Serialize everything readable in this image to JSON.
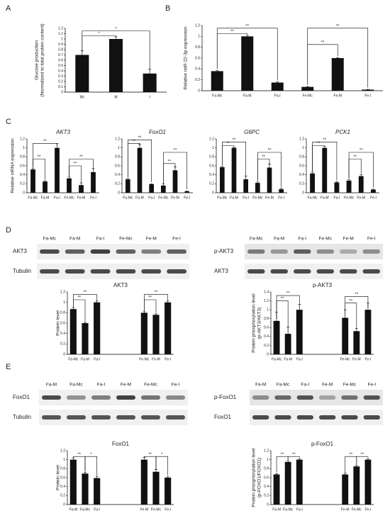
{
  "panels": [
    "A",
    "B",
    "C",
    "D",
    "E"
  ],
  "chart_data": [
    {
      "type": "bar",
      "ylabel": [
        "Glucose production",
        "(Normalized to total protein content)"
      ],
      "categories": [
        "Mc",
        "M",
        "I"
      ],
      "values": [
        0.7,
        1.0,
        0.35
      ],
      "errors": [
        0.08,
        0.04,
        0.08
      ],
      "ylim": [
        0,
        1.2
      ],
      "yticks": [
        0,
        0.1,
        0.2,
        0.3,
        0.4,
        0.5,
        0.6,
        0.7,
        0.8,
        0.9,
        1,
        1.1,
        1.2
      ],
      "color": "#111111",
      "annotations": [
        "*",
        "*"
      ]
    },
    {
      "type": "bar",
      "ylabel": [
        "Relative miR-22-3p expression"
      ],
      "categories": [
        "Fa-Mc",
        "Fa-M",
        "Fa-I",
        "Fe-Mc",
        "Fe-M",
        "Fe-I"
      ],
      "values": [
        0.36,
        1.0,
        0.15,
        0.07,
        0.6,
        0.02
      ],
      "errors": [
        0.01,
        0.02,
        0.01,
        0.005,
        0.01,
        0.005
      ],
      "ylim": [
        0,
        1.2
      ],
      "yticks": [
        0,
        0.2,
        0.4,
        0.6,
        0.8,
        1,
        1.2
      ],
      "color": "#111111",
      "annotations": [
        "**",
        "**",
        "**",
        "**"
      ]
    },
    {
      "type": "bar",
      "title": "AKT3",
      "ylabel": [
        "Relative mRNA expression"
      ],
      "categories": [
        "Fa-Mc",
        "Fa-M",
        "Fa-I",
        "Fe-Mc",
        "Fe-M",
        "Fe-I"
      ],
      "values": [
        0.52,
        0.25,
        1.0,
        0.32,
        0.17,
        0.46
      ],
      "errors": [
        0.03,
        0.02,
        0.1,
        0.03,
        0.05,
        0.08
      ],
      "ylim": [
        0,
        1.2
      ],
      "yticks": [
        0,
        0.2,
        0.4,
        0.6,
        0.8,
        1,
        1.2
      ],
      "color": "#111111",
      "annotations": [
        "**",
        "**",
        "**",
        "**"
      ]
    },
    {
      "type": "bar",
      "title": "FoxO1",
      "categories": [
        "Fa-Mc",
        "Fa-M",
        "Fa-I",
        "Fe-Mc",
        "Fe-M",
        "Fe-I"
      ],
      "values": [
        0.3,
        1.0,
        0.19,
        0.16,
        0.5,
        0.03
      ],
      "errors": [
        0.02,
        0.08,
        0.01,
        0.04,
        0.08,
        0.01
      ],
      "ylim": [
        0,
        1.2
      ],
      "yticks": [
        0,
        0.2,
        0.4,
        0.6,
        0.8,
        1,
        1.2
      ],
      "color": "#111111",
      "annotations": [
        "**",
        "**",
        "**",
        "**"
      ]
    },
    {
      "type": "bar",
      "title": "G6PC",
      "categories": [
        "Fa-Mc",
        "Fa-M",
        "Fa-I",
        "Fe-Mc",
        "Fe-M",
        "Fe-I"
      ],
      "values": [
        0.57,
        1.0,
        0.3,
        0.22,
        0.56,
        0.08
      ],
      "errors": [
        0.02,
        0.02,
        0.07,
        0.02,
        0.08,
        0.02
      ],
      "ylim": [
        0,
        1.2
      ],
      "yticks": [
        0,
        0.2,
        0.4,
        0.6,
        0.8,
        1,
        1.2
      ],
      "color": "#111111",
      "annotations": [
        "**",
        "**",
        "**",
        "**"
      ]
    },
    {
      "type": "bar",
      "title": "PCK1",
      "categories": [
        "Fa-Mc",
        "Fa-M",
        "Fa-I",
        "Fe-Mc",
        "Fe-M",
        "Fe-I"
      ],
      "values": [
        0.43,
        1.0,
        0.23,
        0.27,
        0.37,
        0.07
      ],
      "errors": [
        0.03,
        0.03,
        0.02,
        0.02,
        0.03,
        0.01
      ],
      "ylim": [
        0,
        1.2
      ],
      "yticks": [
        0,
        0.2,
        0.4,
        0.6,
        0.8,
        1,
        1.2
      ],
      "color": "#111111",
      "annotations": [
        "**",
        "**",
        "**",
        "**"
      ]
    },
    {
      "type": "bar",
      "title": "AKT3",
      "ylabel": [
        "Protein level"
      ],
      "categories": [
        "Fa-Mc",
        "Fa-M",
        "Fa-I",
        "Fe-Mc",
        "Fe-M",
        "Fe-I"
      ],
      "values": [
        0.87,
        0.6,
        1.0,
        0.8,
        0.76,
        1.0
      ],
      "errors": [
        0.03,
        0.02,
        0.03,
        0.03,
        0.02,
        0.03
      ],
      "ylim": [
        0,
        1.2
      ],
      "yticks": [
        0,
        0.2,
        0.4,
        0.6,
        0.8,
        1,
        1.2
      ],
      "color": "#111111",
      "annotations": [
        "**",
        "**",
        "**",
        "**"
      ]
    },
    {
      "type": "bar",
      "title": "p-AKT3",
      "ylabel": [
        "Protein phosphorylation level",
        "(p-AKT3/AKT3)"
      ],
      "categories": [
        "Fa-Mc",
        "Fa-M",
        "Fa-I",
        "Fe-Mc",
        "Fe-M",
        "Fe-I"
      ],
      "values": [
        0.75,
        0.46,
        1.0,
        0.82,
        0.52,
        1.0
      ],
      "errors": [
        0.2,
        0.15,
        0.12,
        0.18,
        0.06,
        0.15
      ],
      "ylim": [
        0,
        1.4
      ],
      "yticks": [
        0,
        0.2,
        0.4,
        0.6,
        0.8,
        1,
        1.2,
        1.4
      ],
      "color": "#111111",
      "annotations": [
        "**",
        "**",
        "**",
        "**"
      ]
    },
    {
      "type": "bar",
      "title": "FoxO1",
      "ylabel": [
        "Protein level"
      ],
      "categories": [
        "Fa-M",
        "Fa-Mc",
        "Fa-I",
        "Fe-M",
        "Fe-Mc",
        "Fe-I"
      ],
      "values": [
        1.0,
        0.69,
        0.59,
        1.0,
        0.73,
        0.6
      ],
      "errors": [
        0.04,
        0.03,
        0.03,
        0.05,
        0.05,
        0.02
      ],
      "ylim": [
        0,
        1.2
      ],
      "yticks": [
        0,
        0.2,
        0.4,
        0.6,
        0.8,
        1,
        1.2
      ],
      "color": "#111111",
      "annotations": [
        "**",
        "*",
        "**",
        "*"
      ]
    },
    {
      "type": "bar",
      "title": "p-FoxO1",
      "ylabel": [
        "Protein phosphorylation level",
        "(p-FOXO1/FOXO1)"
      ],
      "categories": [
        "Fa-M",
        "Fa-Mc",
        "Fa-I",
        "Fe-M",
        "Fe-Mc",
        "Fe-I"
      ],
      "values": [
        0.67,
        0.95,
        1.0,
        0.67,
        0.85,
        1.0
      ],
      "errors": [
        0.02,
        0.03,
        0.02,
        0.03,
        0.03,
        0.02
      ],
      "ylim": [
        0,
        1.2
      ],
      "yticks": [
        0,
        0.2,
        0.4,
        0.6,
        0.8,
        1,
        1.2
      ],
      "color": "#111111",
      "annotations": [
        "**",
        "**",
        "**",
        "**"
      ]
    }
  ],
  "blots": [
    {
      "lanes": [
        "Fa-Mc",
        "Fa-M",
        "Fa-I",
        "Fe-Mc",
        "Fe-M",
        "Fe-I"
      ],
      "rows": [
        "AKT3",
        "Tubulin"
      ]
    },
    {
      "lanes": [
        "Fa-Mc",
        "Fa-M",
        "Fa-I",
        "Fe-Mc",
        "Fe-M",
        "Fe-I"
      ],
      "rows": [
        "p-AKT3",
        "AKT3"
      ]
    },
    {
      "lanes": [
        "Fa-M",
        "Fa-Mc",
        "Fa-I",
        "Fe-M",
        "Fe-Mc",
        "Fe-I"
      ],
      "rows": [
        "FoxO1",
        "Tubulin"
      ]
    },
    {
      "lanes": [
        "Fa-M",
        "Fa-Mc",
        "Fa-I",
        "Fe-M",
        "Fe-Mc",
        "Fe-I"
      ],
      "rows": [
        "p-FoxO1",
        "FoxO1"
      ]
    }
  ]
}
